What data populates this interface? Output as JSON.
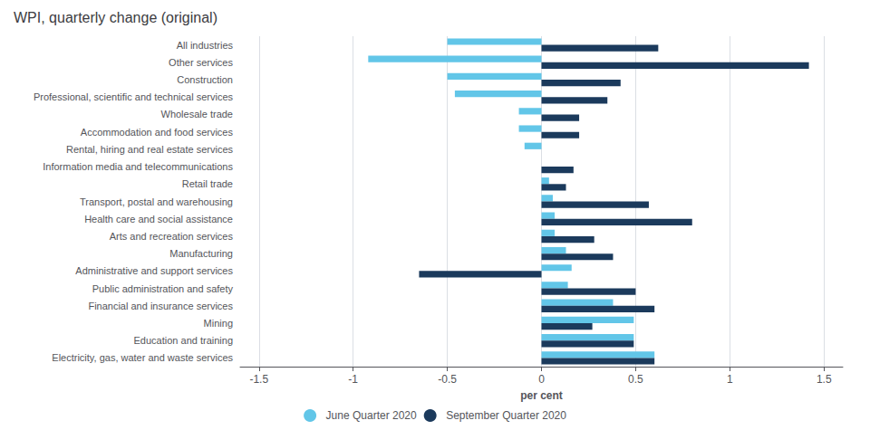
{
  "chart_data": {
    "type": "bar",
    "orientation": "horizontal",
    "title": "WPI, quarterly change (original)",
    "xlabel": "per cent",
    "categories": [
      "All industries",
      "Other services",
      "Construction",
      "Professional, scientific and technical services",
      "Wholesale trade",
      "Accommodation and food services",
      "Rental, hiring and real estate services",
      "Information media and telecommunications",
      "Retail trade",
      "Transport, postal and warehousing",
      "Health care and social assistance",
      "Arts and recreation services",
      "Manufacturing",
      "Administrative and support services",
      "Public administration and safety",
      "Financial and insurance services",
      "Mining",
      "Education and training",
      "Electricity, gas, water and waste services"
    ],
    "series": [
      {
        "name": "June Quarter 2020",
        "color": "#62c6e8",
        "values": [
          -0.5,
          -0.92,
          -0.5,
          -0.46,
          -0.12,
          -0.12,
          -0.09,
          0.0,
          0.04,
          0.06,
          0.07,
          0.07,
          0.13,
          0.16,
          0.14,
          0.38,
          0.49,
          0.49,
          0.6
        ]
      },
      {
        "name": "September Quarter 2020",
        "color": "#1b3a5c",
        "values": [
          0.62,
          1.42,
          0.42,
          0.35,
          0.2,
          0.2,
          0.0,
          0.17,
          0.13,
          0.57,
          0.8,
          0.28,
          0.38,
          -0.65,
          0.5,
          0.6,
          0.27,
          0.49,
          0.6
        ]
      }
    ],
    "xlim": [
      -1.6,
      1.6
    ],
    "xticks": [
      -1.5,
      -1.0,
      -0.5,
      0.0,
      0.5,
      1.0,
      1.5
    ],
    "grid": true,
    "legend": "bottom"
  }
}
